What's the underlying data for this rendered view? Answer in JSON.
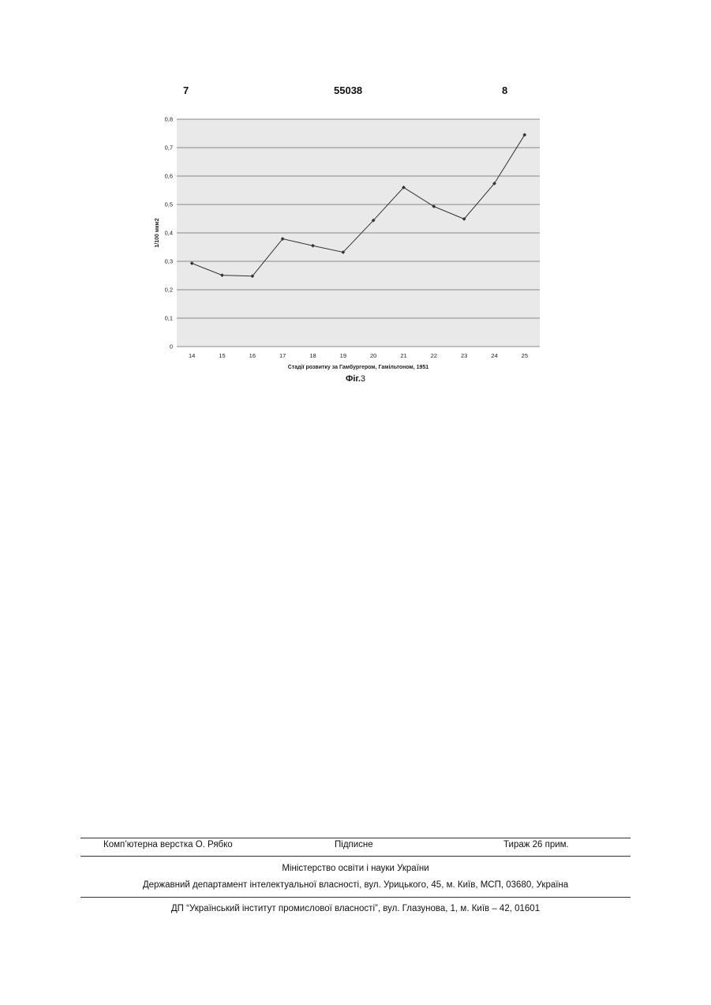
{
  "header": {
    "page_left": "7",
    "doc_number": "55038",
    "page_right": "8"
  },
  "figure": {
    "label": "Фіг.",
    "number": "3"
  },
  "chart_data": {
    "type": "line",
    "x": [
      "14",
      "15",
      "16",
      "17",
      "18",
      "19",
      "20",
      "21",
      "22",
      "23",
      "24",
      "25"
    ],
    "series": [
      {
        "values": [
          0.293,
          0.251,
          0.248,
          0.379,
          0.355,
          0.332,
          0.444,
          0.56,
          0.493,
          0.449,
          0.574,
          0.745
        ]
      }
    ],
    "xlabel": "Стадії розвитку за Гамбургером, Гамільтоном, 1951",
    "ylabel": "1/100 мкм2",
    "ylim": [
      0,
      0.8
    ],
    "yticks": [
      "0",
      "0,1",
      "0,2",
      "0,3",
      "0,4",
      "0,5",
      "0,6",
      "0,7",
      "0,8"
    ],
    "grid": true,
    "colors": {
      "line": "#333333",
      "plot_background": "#e9e9e9",
      "grid": "#666666"
    }
  },
  "footer": {
    "layout": "Комп’ютерна верстка О. Рябко",
    "signed": "Підписне",
    "circulation": "Тираж 26 прим.",
    "ministry": "Міністерство освіти і науки України",
    "department": "Державний департамент інтелектуальної власності, вул. Урицького, 45, м. Київ, МСП, 03680, Україна",
    "institute": "ДП “Український інститут промислової власності”, вул. Глазунова, 1, м. Київ – 42, 01601"
  }
}
